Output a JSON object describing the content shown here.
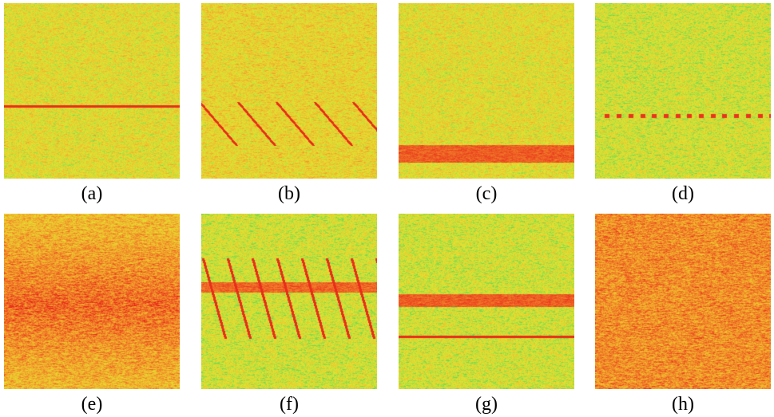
{
  "panels": [
    {
      "label": "(a)",
      "variant": "single-thin-line"
    },
    {
      "label": "(b)",
      "variant": "diagonal-sweeps"
    },
    {
      "label": "(c)",
      "variant": "wide-band-bottom"
    },
    {
      "label": "(d)",
      "variant": "dotted-line"
    },
    {
      "label": "(e)",
      "variant": "broadband-noise"
    },
    {
      "label": "(f)",
      "variant": "band-with-sweeps"
    },
    {
      "label": "(g)",
      "variant": "band-and-thin-line"
    },
    {
      "label": "(h)",
      "variant": "strong-broadband"
    }
  ],
  "colors": {
    "background": "#ffffff",
    "signal_red": "#e8221a",
    "noise_yellow": "#e3e02c",
    "noise_orange": "#ef9a30",
    "noise_green": "#7fd24a",
    "noise_cyan": "#2ed3b0"
  }
}
